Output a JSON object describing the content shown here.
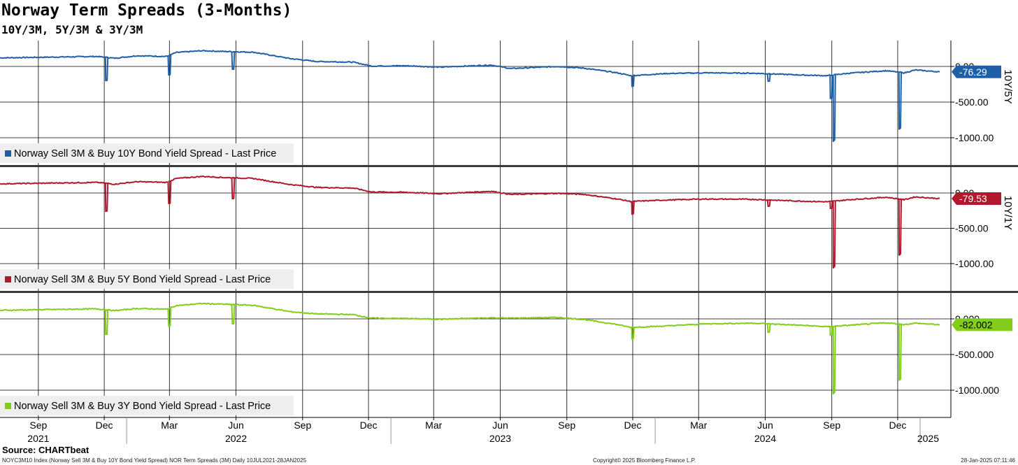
{
  "header": {
    "title": "Norway Term Spreads (3-Months)",
    "subtitle": "10Y/3M, 5Y/3M & 3Y/3M"
  },
  "source": "Source: CHARTbeat",
  "footer": {
    "index": "NOYC3M10 Index (Norway Sell 3M & Buy 10Y Bond Yield Spread) NOR Term Spreads (3M)  Daily 10JUL2021-28JAN2025",
    "copyright": "Copyright© 2025 Bloomberg Finance L.P.",
    "timestamp": "28-Jan-2025 07:11:46"
  },
  "chart_data": {
    "type": "line",
    "x_range": [
      "2021-07-10",
      "2025-01-28"
    ],
    "x_month_ticks": [
      {
        "date": "2021-09-01",
        "label": "Sep"
      },
      {
        "date": "2021-12-01",
        "label": "Dec"
      },
      {
        "date": "2022-03-01",
        "label": "Mar"
      },
      {
        "date": "2022-06-01",
        "label": "Jun"
      },
      {
        "date": "2022-09-01",
        "label": "Sep"
      },
      {
        "date": "2022-12-01",
        "label": "Dec"
      },
      {
        "date": "2023-03-01",
        "label": "Mar"
      },
      {
        "date": "2023-06-01",
        "label": "Jun"
      },
      {
        "date": "2023-09-01",
        "label": "Sep"
      },
      {
        "date": "2023-12-01",
        "label": "Dec"
      },
      {
        "date": "2024-03-01",
        "label": "Mar"
      },
      {
        "date": "2024-06-01",
        "label": "Jun"
      },
      {
        "date": "2024-09-01",
        "label": "Sep"
      },
      {
        "date": "2024-12-01",
        "label": "Dec"
      }
    ],
    "x_year_labels": [
      {
        "date": "2021-09-01",
        "label": "2021"
      },
      {
        "date": "2022-06-01",
        "label": "2022"
      },
      {
        "date": "2023-06-01",
        "label": "2023"
      },
      {
        "date": "2024-06-01",
        "label": "2024"
      },
      {
        "date": "2025-01-12",
        "label": "2025"
      }
    ],
    "x_year_dividers": [
      "2022-01-01",
      "2023-01-01",
      "2024-01-01",
      "2025-01-01"
    ],
    "grid": true,
    "panels": [
      {
        "series_name": "Norway Sell 3M & Buy 10Y Bond Yield Spread - Last Price",
        "axis_title": "10Y/5Y",
        "color": "#1f5fa8",
        "last_value": -76.29,
        "last_label": "-76.29",
        "ylim": [
          -1250,
          300
        ],
        "yticks": [
          {
            "value": 0,
            "label": "0.00"
          },
          {
            "value": -500,
            "label": "-500.00"
          },
          {
            "value": -1000,
            "label": "-1000.00"
          }
        ],
        "points": [
          [
            "2021-07-10",
            120
          ],
          [
            "2021-09-15",
            130
          ],
          [
            "2021-11-20",
            140
          ],
          [
            "2021-12-01",
            130
          ],
          [
            "2021-12-15",
            115
          ],
          [
            "2022-01-15",
            150
          ],
          [
            "2022-02-25",
            140
          ],
          [
            "2022-03-10",
            195
          ],
          [
            "2022-04-15",
            220
          ],
          [
            "2022-05-15",
            210
          ],
          [
            "2022-06-25",
            200
          ],
          [
            "2022-08-15",
            110
          ],
          [
            "2022-09-20",
            70
          ],
          [
            "2022-11-10",
            60
          ],
          [
            "2022-12-05",
            5
          ],
          [
            "2023-01-20",
            10
          ],
          [
            "2023-03-10",
            -10
          ],
          [
            "2023-05-20",
            20
          ],
          [
            "2023-06-15",
            -30
          ],
          [
            "2023-08-20",
            0
          ],
          [
            "2023-09-25",
            -25
          ],
          [
            "2023-11-10",
            -90
          ],
          [
            "2023-11-28",
            -130
          ],
          [
            "2024-01-15",
            -100
          ],
          [
            "2024-03-10",
            -90
          ],
          [
            "2024-05-15",
            -95
          ],
          [
            "2024-07-20",
            -120
          ],
          [
            "2024-08-25",
            -130
          ],
          [
            "2024-09-25",
            -95
          ],
          [
            "2024-11-15",
            -60
          ],
          [
            "2024-12-10",
            -90
          ],
          [
            "2024-12-25",
            -50
          ],
          [
            "2025-01-28",
            -76.29
          ]
        ],
        "spikes": [
          [
            "2021-12-03",
            -200
          ],
          [
            "2022-02-28",
            -120
          ],
          [
            "2022-05-27",
            -40
          ],
          [
            "2023-11-30",
            -280
          ],
          [
            "2024-06-05",
            -210
          ],
          [
            "2024-08-30",
            -450
          ],
          [
            "2024-09-03",
            -1050
          ],
          [
            "2024-12-03",
            -880
          ]
        ]
      },
      {
        "series_name": "Norway Sell 3M & Buy 5Y Bond Yield Spread - Last Price",
        "axis_title": "10Y/1Y",
        "color": "#b0182e",
        "last_value": -79.53,
        "last_label": "-79.53",
        "ylim": [
          -1250,
          300
        ],
        "yticks": [
          {
            "value": 0,
            "label": "0.00"
          },
          {
            "value": -500,
            "label": "-500.00"
          },
          {
            "value": -1000,
            "label": "-1000.00"
          }
        ],
        "points": [
          [
            "2021-07-10",
            130
          ],
          [
            "2021-09-15",
            140
          ],
          [
            "2021-11-20",
            150
          ],
          [
            "2021-12-01",
            140
          ],
          [
            "2021-12-15",
            125
          ],
          [
            "2022-01-15",
            160
          ],
          [
            "2022-02-25",
            150
          ],
          [
            "2022-03-10",
            205
          ],
          [
            "2022-04-15",
            235
          ],
          [
            "2022-05-15",
            220
          ],
          [
            "2022-06-25",
            205
          ],
          [
            "2022-08-15",
            120
          ],
          [
            "2022-09-20",
            80
          ],
          [
            "2022-11-10",
            70
          ],
          [
            "2022-12-05",
            15
          ],
          [
            "2023-01-20",
            10
          ],
          [
            "2023-03-10",
            -10
          ],
          [
            "2023-05-20",
            25
          ],
          [
            "2023-06-15",
            -20
          ],
          [
            "2023-08-20",
            -5
          ],
          [
            "2023-09-25",
            -20
          ],
          [
            "2023-11-10",
            -85
          ],
          [
            "2023-11-28",
            -120
          ],
          [
            "2024-01-15",
            -100
          ],
          [
            "2024-03-10",
            -85
          ],
          [
            "2024-05-15",
            -90
          ],
          [
            "2024-07-20",
            -115
          ],
          [
            "2024-08-25",
            -125
          ],
          [
            "2024-09-25",
            -95
          ],
          [
            "2024-11-15",
            -60
          ],
          [
            "2024-12-10",
            -95
          ],
          [
            "2024-12-25",
            -55
          ],
          [
            "2025-01-28",
            -79.53
          ]
        ],
        "spikes": [
          [
            "2021-12-03",
            -260
          ],
          [
            "2022-02-28",
            -150
          ],
          [
            "2022-05-27",
            -80
          ],
          [
            "2023-11-30",
            -300
          ],
          [
            "2024-06-05",
            -190
          ],
          [
            "2024-08-30",
            -220
          ],
          [
            "2024-09-03",
            -1060
          ],
          [
            "2024-12-03",
            -880
          ]
        ]
      },
      {
        "series_name": "Norway Sell 3M & Buy 3Y Bond Yield Spread - Last Price",
        "axis_title": "",
        "color": "#82cc1a",
        "last_value": -82.002,
        "last_label": "-82.002",
        "ylim": [
          -1250,
          300
        ],
        "yticks": [
          {
            "value": 0,
            "label": "0.000"
          },
          {
            "value": -500,
            "label": "-500.000"
          },
          {
            "value": -1000,
            "label": "-1000.000"
          }
        ],
        "points": [
          [
            "2021-07-10",
            120
          ],
          [
            "2021-09-15",
            130
          ],
          [
            "2021-11-20",
            140
          ],
          [
            "2021-12-01",
            130
          ],
          [
            "2021-12-15",
            115
          ],
          [
            "2022-01-15",
            145
          ],
          [
            "2022-02-25",
            135
          ],
          [
            "2022-03-10",
            185
          ],
          [
            "2022-04-15",
            215
          ],
          [
            "2022-05-15",
            205
          ],
          [
            "2022-06-25",
            190
          ],
          [
            "2022-08-15",
            100
          ],
          [
            "2022-09-20",
            70
          ],
          [
            "2022-11-10",
            60
          ],
          [
            "2022-12-05",
            10
          ],
          [
            "2023-01-20",
            5
          ],
          [
            "2023-03-10",
            -5
          ],
          [
            "2023-05-20",
            15
          ],
          [
            "2023-06-15",
            10
          ],
          [
            "2023-08-20",
            20
          ],
          [
            "2023-09-25",
            -10
          ],
          [
            "2023-11-10",
            -80
          ],
          [
            "2023-11-28",
            -120
          ],
          [
            "2024-01-15",
            -100
          ],
          [
            "2024-03-10",
            -70
          ],
          [
            "2024-05-15",
            -60
          ],
          [
            "2024-07-20",
            -90
          ],
          [
            "2024-08-25",
            -110
          ],
          [
            "2024-09-25",
            -90
          ],
          [
            "2024-11-15",
            -55
          ],
          [
            "2024-12-10",
            -80
          ],
          [
            "2024-12-25",
            -60
          ],
          [
            "2025-01-28",
            -82.002
          ]
        ],
        "spikes": [
          [
            "2021-12-03",
            -220
          ],
          [
            "2022-02-28",
            -100
          ],
          [
            "2022-05-27",
            -70
          ],
          [
            "2023-11-30",
            -280
          ],
          [
            "2024-06-05",
            -190
          ],
          [
            "2024-08-30",
            -230
          ],
          [
            "2024-09-03",
            -1050
          ],
          [
            "2024-12-03",
            -860
          ]
        ]
      }
    ]
  }
}
